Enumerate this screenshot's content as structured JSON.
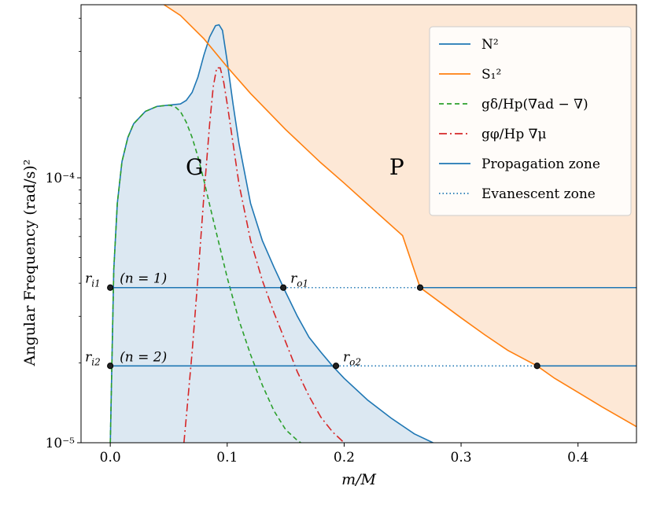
{
  "chart_data": {
    "type": "line",
    "title": "",
    "xlabel": "m/M",
    "ylabel": "Angular Frequency (rad/s)²",
    "xlim": [
      -0.025,
      0.45
    ],
    "ylim": [
      1e-05,
      0.00045
    ],
    "yscale": "log",
    "xticks": [
      0.0,
      0.1,
      0.2,
      0.3,
      0.4
    ],
    "xtick_labels": [
      "0.0",
      "0.1",
      "0.2",
      "0.3",
      "0.4"
    ],
    "yticks": [
      1e-05,
      0.0001
    ],
    "ytick_labels": [
      "10⁻⁵",
      "10⁻⁴"
    ],
    "grid": false,
    "legend_position": "top-right",
    "colors": {
      "N2": "#1f77b4",
      "S2": "#ff7f0e",
      "thermal": "#2ca02c",
      "composition": "#d62728",
      "propagation": "#1f77b4",
      "evanescent": "#1f77b4",
      "g_region_fill": "#dce8f2",
      "p_region_fill": "#fde8d6"
    },
    "series": [
      {
        "name": "N²",
        "key": "N2",
        "x": [
          0.0,
          0.003,
          0.006,
          0.01,
          0.015,
          0.02,
          0.03,
          0.04,
          0.05,
          0.06,
          0.065,
          0.07,
          0.075,
          0.08,
          0.085,
          0.09,
          0.093,
          0.096,
          0.1,
          0.105,
          0.11,
          0.12,
          0.13,
          0.14,
          0.15,
          0.16,
          0.17,
          0.18,
          0.19,
          0.2,
          0.22,
          0.24,
          0.26,
          0.276
        ],
        "y": [
          1e-05,
          4.5e-05,
          8e-05,
          0.000115,
          0.000142,
          0.00016,
          0.000178,
          0.000186,
          0.000188,
          0.00019,
          0.000196,
          0.00021,
          0.00024,
          0.00029,
          0.00034,
          0.000375,
          0.000378,
          0.00036,
          0.000275,
          0.00019,
          0.000135,
          8e-05,
          5.8e-05,
          4.6e-05,
          3.7e-05,
          3e-05,
          2.5e-05,
          2.2e-05,
          1.95e-05,
          1.75e-05,
          1.45e-05,
          1.24e-05,
          1.08e-05,
          1e-05
        ]
      },
      {
        "name": "S₁²",
        "key": "S2",
        "x": [
          0.046,
          0.06,
          0.08,
          0.1,
          0.12,
          0.15,
          0.18,
          0.2,
          0.22,
          0.25,
          0.265,
          0.28,
          0.3,
          0.32,
          0.34,
          0.365,
          0.38,
          0.4,
          0.42,
          0.45
        ],
        "y": [
          0.00045,
          0.00041,
          0.000335,
          0.000262,
          0.000208,
          0.000152,
          0.000114,
          9.55e-05,
          7.95e-05,
          6.05e-05,
          3.85e-05,
          3.44e-05,
          2.96e-05,
          2.56e-05,
          2.23e-05,
          1.95e-05,
          1.75e-05,
          1.55e-05,
          1.37e-05,
          1.15e-05
        ]
      },
      {
        "name": "gδ/Hp(∇ad − ∇)",
        "key": "thermal",
        "x": [
          0.0,
          0.003,
          0.006,
          0.01,
          0.015,
          0.02,
          0.03,
          0.04,
          0.05,
          0.055,
          0.06,
          0.065,
          0.07,
          0.075,
          0.08,
          0.085,
          0.09,
          0.1,
          0.11,
          0.12,
          0.13,
          0.14,
          0.15,
          0.16,
          0.163
        ],
        "y": [
          1e-05,
          4.5e-05,
          8e-05,
          0.000115,
          0.000142,
          0.00016,
          0.000178,
          0.000186,
          0.000188,
          0.000186,
          0.000178,
          0.000162,
          0.000142,
          0.00012,
          9.8e-05,
          7.9e-05,
          6.4e-05,
          4.2e-05,
          2.9e-05,
          2.15e-05,
          1.65e-05,
          1.32e-05,
          1.12e-05,
          1.02e-05,
          1e-05
        ]
      },
      {
        "name": "gφ/Hp∇μ",
        "key": "composition",
        "x": [
          0.063,
          0.066,
          0.07,
          0.075,
          0.08,
          0.085,
          0.088,
          0.091,
          0.094,
          0.097,
          0.1,
          0.105,
          0.11,
          0.12,
          0.13,
          0.14,
          0.15,
          0.16,
          0.17,
          0.18,
          0.19,
          0.2
        ],
        "y": [
          1e-05,
          1.4e-05,
          2.2e-05,
          4.2e-05,
          8.5e-05,
          0.00016,
          0.00022,
          0.00026,
          0.00026,
          0.00023,
          0.00019,
          0.000135,
          9.5e-05,
          5.8e-05,
          4.1e-05,
          3.1e-05,
          2.4e-05,
          1.85e-05,
          1.5e-05,
          1.25e-05,
          1.1e-05,
          1e-05
        ]
      }
    ],
    "modes": [
      {
        "propagation_label": "Propagation zone",
        "evanescent_label": "Evanescent zone",
        "y": 3.85e-05,
        "r_i": 0.0,
        "r_o": 0.148,
        "r_p": 0.265,
        "x_end": 0.45,
        "ri_label": "r_i1",
        "ro_label": "r_o1",
        "ng_label": "(n_g = 1)"
      },
      {
        "y": 1.95e-05,
        "r_i": 0.0,
        "r_o": 0.193,
        "r_p": 0.365,
        "x_end": 0.45,
        "ri_label": "r_i2",
        "ro_label": "r_o2",
        "ng_label": "(n_g = 2)"
      }
    ],
    "region_labels": [
      {
        "text": "G",
        "x": 0.072,
        "y": 0.000103
      },
      {
        "text": "P",
        "x": 0.245,
        "y": 0.000103
      }
    ],
    "legend": [
      {
        "label": "N²",
        "style": "solid",
        "color_key": "N2"
      },
      {
        "label": "S₁²",
        "style": "solid",
        "color_key": "S2"
      },
      {
        "label": "gδ/Hp(∇ad − ∇)",
        "style": "dashed",
        "color_key": "thermal"
      },
      {
        "label": "gφ/Hp ∇μ",
        "style": "dashdot",
        "color_key": "composition"
      },
      {
        "label": "Propagation zone",
        "style": "solid",
        "color_key": "propagation"
      },
      {
        "label": "Evanescent zone",
        "style": "dotted",
        "color_key": "evanescent"
      }
    ]
  }
}
